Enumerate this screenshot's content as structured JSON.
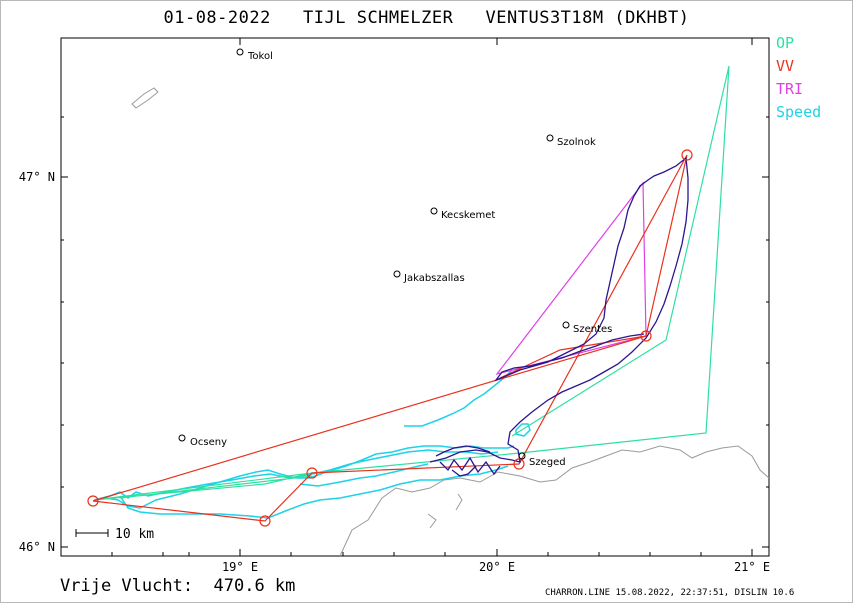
{
  "title": "01-08-2022   TIJL SCHMELZER   VENTUS3T18M (DKHBT)",
  "legend": [
    {
      "label": "OP",
      "color": "#2ee0a0"
    },
    {
      "label": "VV",
      "color": "#e8321e"
    },
    {
      "label": "TRI",
      "color": "#e040e8"
    },
    {
      "label": "Speed",
      "color": "#1ed2e8"
    }
  ],
  "axes": {
    "y_ticks": [
      "47° N",
      "46° N"
    ],
    "x_ticks": [
      "19° E",
      "20° E",
      "21° E"
    ]
  },
  "scale_bar": "10 km",
  "places": [
    "Tokol",
    "Szolnok",
    "Kecskemet",
    "Jakabszallas",
    "Szentes",
    "Ocseny",
    "Szeged"
  ],
  "result": "Vrije Vlucht:  470.6 km",
  "footer": "CHARRON.LINE 15.08.2022, 22:37:51, DISLIN 10.6",
  "colors": {
    "track": "#2a1690",
    "border": "#9a9a9a",
    "speed": "#1ed2e8",
    "op": "#2ee0a0",
    "vv": "#e8321e",
    "tri": "#e040e8"
  }
}
